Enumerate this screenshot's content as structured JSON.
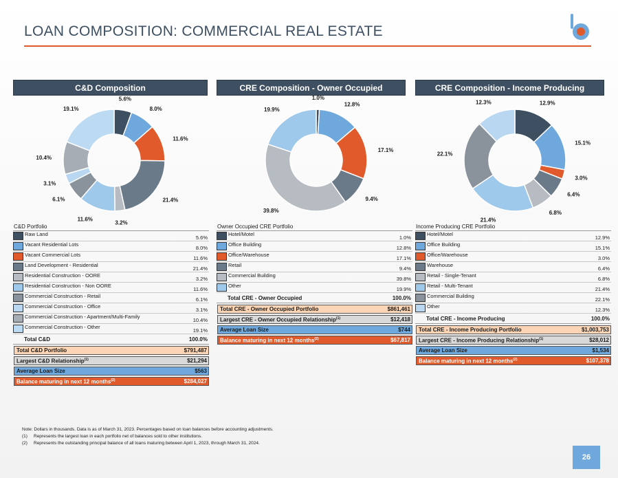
{
  "page": {
    "title": "LOAN COMPOSITION: COMMERCIAL REAL ESTATE",
    "page_number": "26",
    "brand_color": "#e05a2b",
    "accent_color": "#3d4f60"
  },
  "notes": {
    "main": "Note: Dollars in thousands. Data is as of March 31, 2023. Percentages based on loan balances before accounting adjustments.",
    "n1_key": "(1)",
    "n1_text": "Represents the largest loan in each portfolio net of balances sold to other institutions.",
    "n2_key": "(2)",
    "n2_text": "Represents the outstanding principal balance of all loans maturing between April 1, 2023, through March 31, 2024."
  },
  "panels": [
    {
      "header": "C&D Composition",
      "caption": "C&D Portfolio",
      "total_label": "Total C&D",
      "total_value": "100.0%",
      "highlights": [
        {
          "label": "Total C&D Portfolio",
          "sup": "",
          "value": "$791,487",
          "style": "peach"
        },
        {
          "label": "Largest C&D Relationship",
          "sup": "(1)",
          "value": "$21,294",
          "style": "grey"
        },
        {
          "label": "Average Loan Size",
          "sup": "",
          "value": "$563",
          "style": "blue"
        },
        {
          "label": "Balance maturing in next 12 months",
          "sup": "(2)",
          "value": "$284,027",
          "style": "orange"
        }
      ]
    },
    {
      "header": "CRE Composition - Owner Occupied",
      "caption": "Owner Occupied CRE Portfolio",
      "total_label": "Total CRE - Owner Occupied",
      "total_value": "100.0%",
      "highlights": [
        {
          "label": "Total CRE - Owner Occupied Portfolio",
          "sup": "",
          "value": "$861,461",
          "style": "peach"
        },
        {
          "label": "Largest CRE - Owner Occupied Relationship",
          "sup": "(1)",
          "value": "$12,418",
          "style": "grey"
        },
        {
          "label": "Average Loan Size",
          "sup": "",
          "value": "$744",
          "style": "blue"
        },
        {
          "label": "Balance maturing in next 12 months",
          "sup": "(2)",
          "value": "$67,817",
          "style": "orange"
        }
      ]
    },
    {
      "header": "CRE Composition - Income Producing",
      "caption": "Income Producing CRE Portfolio",
      "total_label": "Total CRE - Income Producing",
      "total_value": "100.0%",
      "highlights": [
        {
          "label": "Total CRE - Income Producing Portfolio",
          "sup": "",
          "value": "$1,003,753",
          "style": "peach"
        },
        {
          "label": "Largest CRE - Income Producing Relationship",
          "sup": "(1)",
          "value": "$28,012",
          "style": "grey"
        },
        {
          "label": "Average Loan Size",
          "sup": "",
          "value": "$1,534",
          "style": "blue"
        },
        {
          "label": "Balance maturing in next 12 months",
          "sup": "(2)",
          "value": "$107,378",
          "style": "orange"
        }
      ]
    }
  ],
  "chart_data": [
    {
      "type": "pie",
      "title": "C&D Composition",
      "categories": [
        "Raw Land",
        "Vacant Residential Lots",
        "Vacant Commercial Lots",
        "Land Development - Residential",
        "Residential Construction - OORE",
        "Residential Construction - Non OORE",
        "Commercial Construction - Retail",
        "Commercial Construction - Office",
        "Commercial Construction - Apartment/Multi-Family",
        "Commercial Construction - Other"
      ],
      "values": [
        5.6,
        8.0,
        11.6,
        21.4,
        3.2,
        11.6,
        6.1,
        3.1,
        10.4,
        19.1
      ],
      "value_labels": [
        "5.6%",
        "8.0%",
        "11.6%",
        "21.4%",
        "3.2%",
        "11.6%",
        "6.1%",
        "3.1%",
        "10.4%",
        "19.1%"
      ],
      "colors": [
        "#3d4f60",
        "#6fa8dc",
        "#e05a2b",
        "#6b7a88",
        "#b7bcc2",
        "#9ec9ea",
        "#8a939c",
        "#b9d7f0",
        "#a7adb4",
        "#bcdaf2"
      ],
      "donut": true
    },
    {
      "type": "pie",
      "title": "CRE Composition - Owner Occupied",
      "categories": [
        "Hotel/Motel",
        "Office Building",
        "Office/Warehouse",
        "Retail",
        "Commercial Building",
        "Other"
      ],
      "values": [
        1.0,
        12.8,
        17.1,
        9.4,
        39.8,
        19.9
      ],
      "value_labels": [
        "1.0%",
        "12.8%",
        "17.1%",
        "9.4%",
        "39.8%",
        "19.9%"
      ],
      "colors": [
        "#3d4f60",
        "#6fa8dc",
        "#e05a2b",
        "#6b7a88",
        "#b7bcc2",
        "#9ec9ea"
      ],
      "donut": true
    },
    {
      "type": "pie",
      "title": "CRE Composition - Income Producing",
      "categories": [
        "Hotel/Motel",
        "Office Building",
        "Office/Warehouse",
        "Warehouse",
        "Retail - Single-Tenant",
        "Retail - Multi-Tenant",
        "Commercial Building",
        "Other"
      ],
      "values": [
        12.9,
        15.1,
        3.0,
        6.4,
        6.8,
        21.4,
        22.1,
        12.3
      ],
      "value_labels": [
        "12.9%",
        "15.1%",
        "3.0%",
        "6.4%",
        "6.8%",
        "21.4%",
        "22.1%",
        "12.3%"
      ],
      "colors": [
        "#3d4f60",
        "#6fa8dc",
        "#e05a2b",
        "#6b7a88",
        "#b7bcc2",
        "#9ec9ea",
        "#8a939c",
        "#b9d7f0"
      ],
      "donut": true
    }
  ]
}
